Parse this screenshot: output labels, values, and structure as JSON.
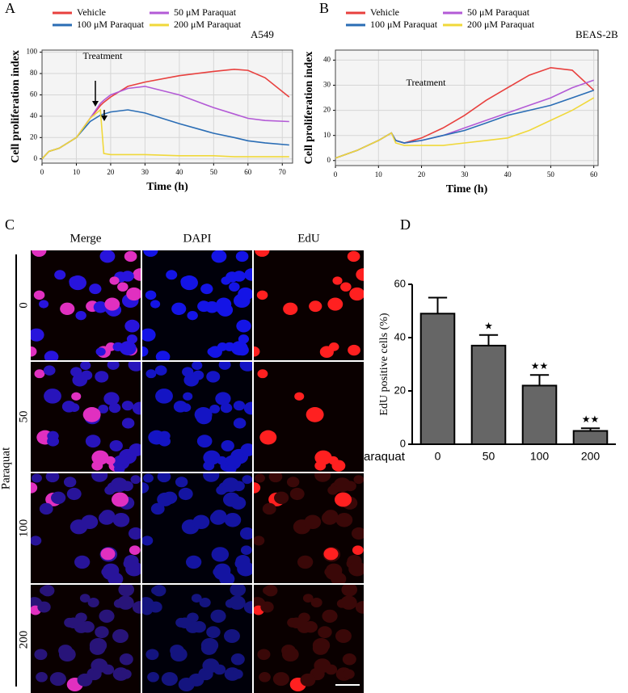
{
  "chart_data": [
    {
      "type": "line",
      "panel": "A",
      "cell_line": "A549",
      "annotation": "Treatment",
      "x_label": "Time (h)",
      "y_label": "Cell proliferation index",
      "x": [
        0,
        2,
        5,
        10,
        14,
        17,
        18,
        20,
        25,
        30,
        40,
        50,
        56,
        60,
        65,
        72
      ],
      "series": [
        {
          "name": "Vehicle",
          "color": "#e8403e",
          "values": [
            0,
            7,
            10,
            20,
            38,
            50,
            53,
            58,
            68,
            72,
            78,
            82,
            84,
            83,
            76,
            58
          ]
        },
        {
          "name": "50 μM Paraquat",
          "color": "#b35ad6",
          "values": [
            0,
            7,
            10,
            20,
            38,
            52,
            55,
            60,
            66,
            68,
            60,
            48,
            42,
            38,
            36,
            35
          ]
        },
        {
          "name": "100 μM Paraquat",
          "color": "#2a6db5",
          "values": [
            0,
            7,
            10,
            20,
            35,
            41,
            42,
            44,
            46,
            43,
            33,
            24,
            20,
            17,
            15,
            13
          ]
        },
        {
          "name": "200 μM Paraquat",
          "color": "#f0d83a",
          "values": [
            0,
            7,
            10,
            20,
            38,
            46,
            5,
            4,
            4,
            4,
            3,
            3,
            2,
            2,
            2,
            2
          ]
        }
      ],
      "xlim": [
        0,
        73
      ],
      "xticks": [
        0,
        10,
        20,
        30,
        40,
        50,
        60,
        70
      ],
      "ylim": [
        -4,
        102
      ],
      "yticks": [
        0,
        20,
        40,
        60,
        80,
        100
      ],
      "grid": true
    },
    {
      "type": "line",
      "panel": "B",
      "cell_line": "BEAS-2B",
      "annotation": "Treatment",
      "x_label": "Time (h)",
      "y_label": "Cell proliferation index",
      "x": [
        0,
        5,
        10,
        13,
        14,
        16,
        20,
        25,
        30,
        35,
        40,
        45,
        50,
        55,
        60
      ],
      "series": [
        {
          "name": "Vehicle",
          "color": "#e8403e",
          "values": [
            1,
            4,
            8,
            11,
            8,
            7,
            9,
            13,
            18,
            24,
            29,
            34,
            37,
            36,
            28
          ]
        },
        {
          "name": "50 μM Paraquat",
          "color": "#b35ad6",
          "values": [
            1,
            4,
            8,
            11,
            8,
            7,
            8,
            10,
            13,
            16,
            19,
            22,
            25,
            29,
            32
          ]
        },
        {
          "name": "100 μM Paraquat",
          "color": "#2a6db5",
          "values": [
            1,
            4,
            8,
            11,
            8,
            7,
            8,
            10,
            12,
            15,
            18,
            20,
            22,
            25,
            28
          ]
        },
        {
          "name": "200 μM Paraquat",
          "color": "#f0d83a",
          "values": [
            1,
            4,
            8,
            11,
            7,
            6,
            6,
            6,
            7,
            8,
            9,
            12,
            16,
            20,
            25
          ]
        }
      ],
      "xlim": [
        0,
        61
      ],
      "xticks": [
        0,
        10,
        20,
        30,
        40,
        50,
        60
      ],
      "ylim": [
        -2,
        44
      ],
      "yticks": [
        0,
        10,
        20,
        30,
        40
      ],
      "grid": true
    },
    {
      "type": "bar",
      "panel": "D",
      "x_label": "Paraquat",
      "y_label": "EdU positive cells (%)",
      "categories": [
        "0",
        "50",
        "100",
        "200"
      ],
      "values": [
        49,
        37,
        22,
        5
      ],
      "errors": [
        6,
        4,
        4,
        1
      ],
      "significance": [
        null,
        "★",
        "★★",
        "★★"
      ],
      "color": "#666666",
      "ylim": [
        0,
        60
      ],
      "yticks": [
        0,
        20,
        40,
        60
      ]
    }
  ],
  "image_panel": {
    "panel": "C",
    "columns": [
      "Merge",
      "DAPI",
      "EdU"
    ],
    "column_colors": [
      "#000000",
      "#2020ff",
      "#e01010"
    ],
    "row_title": "Paraquat",
    "rows": [
      "0",
      "50",
      "100",
      "200"
    ]
  }
}
